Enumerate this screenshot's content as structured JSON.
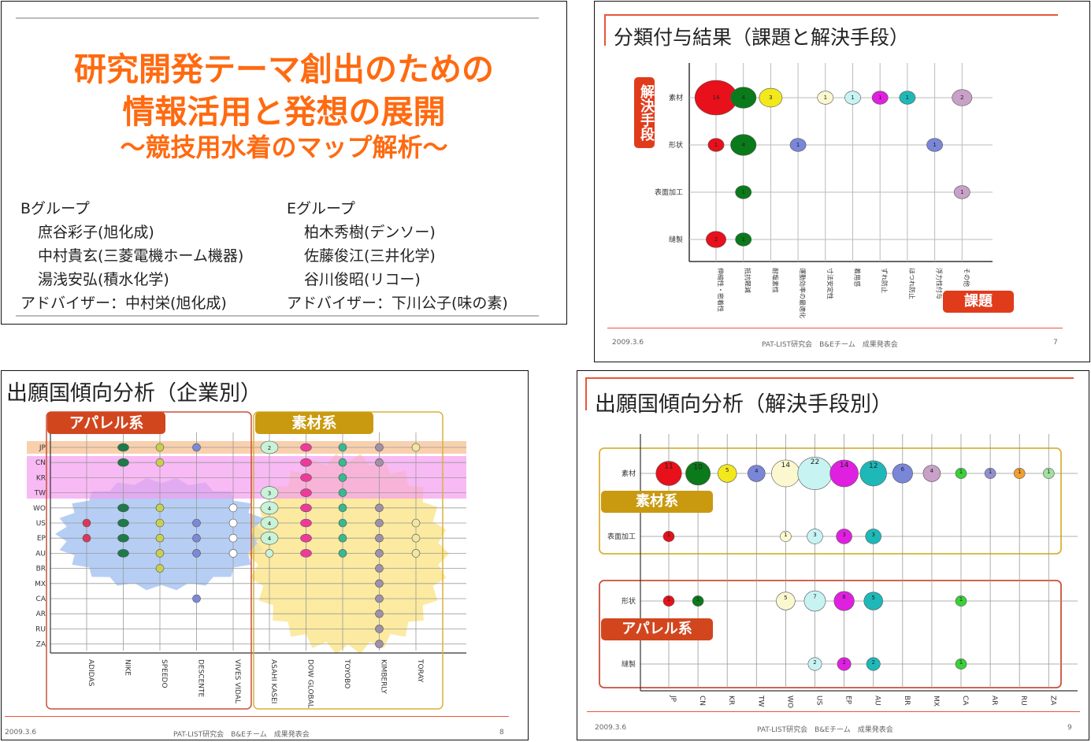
{
  "slide1": {
    "title_line1": "研究開発テーマ創出のための",
    "title_line2": "情報活用と発想の展開",
    "title_line3": "～競技用水着のマップ解析～",
    "group_b": {
      "name": "Bグループ",
      "members": [
        "庶谷彩子(旭化成)",
        "中村貴玄(三菱電機ホーム機器)",
        "湯浅安弘(積水化学)"
      ],
      "advisor": "アドバイザー：中村栄(旭化成)"
    },
    "group_e": {
      "name": "Eグループ",
      "members": [
        "柏木秀樹(デンソー)",
        "佐藤俊江(三井化学)",
        "谷川俊昭(リコー)"
      ],
      "advisor": "アドバイザー：下川公子(味の素)"
    }
  },
  "slide2": {
    "title": "分類付与結果（課題と解決手段）",
    "y_tag": "解決手段",
    "x_tag": "課題",
    "footer_date": "2009.3.6",
    "footer_center": "PAT-LIST研究会　B&Eチーム　成果発表会",
    "page": "7",
    "colors": {
      "accent": "#e8553a",
      "tag": "#e03c1c"
    }
  },
  "slide3": {
    "title": "出願国傾向分析（企業別）",
    "tag_apparel": "アパレル系",
    "tag_material": "素材系",
    "footer_date": "2009.3.6",
    "footer_center": "PAT-LIST研究会　B&Eチーム　成果発表会",
    "page": "8",
    "colors": {
      "apparel_tag": "#d2461e",
      "material_tag": "#c99a10",
      "blob_blue": "#a9c5f2",
      "blob_yellow": "#fae68f",
      "band_pink": "#f59cf0",
      "band_orange": "#f6c49a"
    }
  },
  "slide4": {
    "title": "出願国傾向分析（解決手段別）",
    "tag_material": "素材系",
    "tag_apparel": "アパレル系",
    "footer_date": "2009.3.6",
    "footer_center": "PAT-LIST研究会　B&Eチーム　成果発表会",
    "page": "9"
  },
  "chart_data": [
    {
      "type": "scatter",
      "title": "分類付与結果（課題と解決手段）",
      "xlabel": "課題",
      "ylabel": "解決手段",
      "x_categories": [
        "伸縮性・密着性",
        "抵抗軽減",
        "耐塩素性",
        "運動効率の最適化",
        "寸法安定性",
        "着用感",
        "ずれ防止",
        "ほつれ防止",
        "浮力性付与",
        "その他"
      ],
      "y_categories": [
        "素材",
        "形状",
        "表面加工",
        "縫製"
      ],
      "points": [
        {
          "x": "伸縮性・密着性",
          "y": "素材",
          "value": 14,
          "color": "#e8101a"
        },
        {
          "x": "抵抗軽減",
          "y": "素材",
          "value": 4,
          "color": "#0a7a1a"
        },
        {
          "x": "耐塩素性",
          "y": "素材",
          "value": 3,
          "color": "#f2e81c"
        },
        {
          "x": "寸法安定性",
          "y": "素材",
          "value": 1,
          "color": "#fbf7cf"
        },
        {
          "x": "着用感",
          "y": "素材",
          "value": 1,
          "color": "#c8f3f3"
        },
        {
          "x": "ずれ防止",
          "y": "素材",
          "value": 1,
          "color": "#e020e0"
        },
        {
          "x": "ほつれ防止",
          "y": "素材",
          "value": 1,
          "color": "#1fb8b8"
        },
        {
          "x": "その他",
          "y": "素材",
          "value": 2,
          "color": "#c8a0c8"
        },
        {
          "x": "伸縮性・密着性",
          "y": "形状",
          "value": 1,
          "color": "#e8101a"
        },
        {
          "x": "抵抗軽減",
          "y": "形状",
          "value": 4,
          "color": "#0a7a1a"
        },
        {
          "x": "運動効率の最適化",
          "y": "形状",
          "value": 1,
          "color": "#7a86d8"
        },
        {
          "x": "浮力性付与",
          "y": "形状",
          "value": 1,
          "color": "#7a86d8"
        },
        {
          "x": "抵抗軽減",
          "y": "表面加工",
          "value": 1,
          "color": "#0a7a1a"
        },
        {
          "x": "その他",
          "y": "表面加工",
          "value": 1,
          "color": "#c8a0c8"
        },
        {
          "x": "伸縮性・密着性",
          "y": "縫製",
          "value": 2,
          "color": "#e8101a"
        },
        {
          "x": "抵抗軽減",
          "y": "縫製",
          "value": 1,
          "color": "#0a7a1a"
        }
      ]
    },
    {
      "type": "scatter",
      "title": "出願国傾向分析（企業別）",
      "x_categories": [
        "ADIDAS",
        "NIKE",
        "SPEEDO",
        "DESCENTE",
        "VIVES VIDAL",
        "ASAHI KASEI",
        "DOW GLOBAL",
        "TOYOBO",
        "KIMBERLY",
        "TORAY"
      ],
      "y_categories": [
        "JP",
        "CN",
        "KR",
        "TW",
        "WO",
        "US",
        "EP",
        "AU",
        "BR",
        "MX",
        "CA",
        "AR",
        "RU",
        "ZA"
      ],
      "groups": {
        "アパレル系": [
          "ADIDAS",
          "NIKE",
          "SPEEDO",
          "DESCENTE",
          "VIVES VIDAL"
        ],
        "素材系": [
          "ASAHI KASEI",
          "DOW GLOBAL",
          "TOYOBO",
          "KIMBERLY",
          "TORAY"
        ]
      },
      "series": [
        {
          "company": "ADIDAS",
          "color": "#d83a5a",
          "countries": [
            "US",
            "EP"
          ]
        },
        {
          "company": "NIKE",
          "color": "#1e7a4a",
          "countries": [
            "JP",
            "CN",
            "WO",
            "US",
            "EP",
            "AU"
          ]
        },
        {
          "company": "SPEEDO",
          "color": "#c8d050",
          "countries": [
            "JP",
            "CN",
            "WO",
            "US",
            "EP",
            "AU",
            "BR"
          ]
        },
        {
          "company": "DESCENTE",
          "color": "#7a8ad8",
          "countries": [
            "JP",
            "US",
            "EP",
            "AU",
            "CA"
          ]
        },
        {
          "company": "VIVES VIDAL",
          "color": "#ffffff",
          "countries": [
            "WO",
            "US",
            "EP",
            "AU"
          ]
        },
        {
          "company": "ASAHI KASEI",
          "color": "#c8f3d8",
          "countries": [
            "JP",
            "TW",
            "WO",
            "US",
            "EP",
            "AU"
          ],
          "labels": {
            "JP": "2",
            "TW": "3",
            "WO": "4",
            "US": "4",
            "EP": "4"
          }
        },
        {
          "company": "DOW GLOBAL",
          "color": "#f03a9a",
          "countries": [
            "JP",
            "CN",
            "KR",
            "TW",
            "WO",
            "US",
            "EP",
            "AU"
          ]
        },
        {
          "company": "TOYOBO",
          "color": "#3ab890",
          "countries": [
            "JP",
            "CN",
            "KR",
            "TW",
            "WO",
            "US",
            "EP",
            "AU"
          ]
        },
        {
          "company": "KIMBERLY",
          "color": "#a090a8",
          "countries": [
            "JP",
            "CN",
            "WO",
            "US",
            "EP",
            "AU",
            "BR",
            "MX",
            "CA",
            "AR",
            "RU",
            "ZA"
          ]
        },
        {
          "company": "TORAY",
          "color": "#f0e8a0",
          "countries": [
            "JP",
            "US",
            "EP",
            "AU"
          ]
        }
      ]
    },
    {
      "type": "scatter",
      "title": "出願国傾向分析（解決手段別）",
      "x_categories": [
        "JP",
        "CN",
        "KR",
        "TW",
        "WO",
        "US",
        "EP",
        "AU",
        "BR",
        "MX",
        "CA",
        "AR",
        "RU",
        "ZA"
      ],
      "y_categories": [
        "素材",
        "表面加工",
        "形状",
        "縫製"
      ],
      "points": [
        {
          "x": "JP",
          "y": "素材",
          "value": 11,
          "color": "#e8101a"
        },
        {
          "x": "CN",
          "y": "素材",
          "value": 10,
          "color": "#0a7a1a"
        },
        {
          "x": "KR",
          "y": "素材",
          "value": 5,
          "color": "#f2e81c"
        },
        {
          "x": "TW",
          "y": "素材",
          "value": 4,
          "color": "#7a86d8"
        },
        {
          "x": "WO",
          "y": "素材",
          "value": 14,
          "color": "#fbf7cf"
        },
        {
          "x": "US",
          "y": "素材",
          "value": 22,
          "color": "#c8f3f3"
        },
        {
          "x": "EP",
          "y": "素材",
          "value": 14,
          "color": "#e020e0"
        },
        {
          "x": "AU",
          "y": "素材",
          "value": 12,
          "color": "#1fb8b8"
        },
        {
          "x": "BR",
          "y": "素材",
          "value": 6,
          "color": "#7a86d8"
        },
        {
          "x": "MX",
          "y": "素材",
          "value": 4,
          "color": "#c8a0c8"
        },
        {
          "x": "CA",
          "y": "素材",
          "value": 1,
          "color": "#3ad03a"
        },
        {
          "x": "AR",
          "y": "素材",
          "value": 1,
          "color": "#9090d0"
        },
        {
          "x": "RU",
          "y": "素材",
          "value": 1,
          "color": "#f0a030"
        },
        {
          "x": "ZA",
          "y": "素材",
          "value": 1,
          "color": "#a0e0a0"
        },
        {
          "x": "JP",
          "y": "表面加工",
          "value": 1,
          "color": "#e8101a"
        },
        {
          "x": "WO",
          "y": "表面加工",
          "value": 1,
          "color": "#fbf7cf"
        },
        {
          "x": "US",
          "y": "表面加工",
          "value": 3,
          "color": "#c8f3f3"
        },
        {
          "x": "EP",
          "y": "表面加工",
          "value": 3,
          "color": "#e020e0"
        },
        {
          "x": "AU",
          "y": "表面加工",
          "value": 3,
          "color": "#1fb8b8"
        },
        {
          "x": "JP",
          "y": "形状",
          "value": 1,
          "color": "#e8101a"
        },
        {
          "x": "CN",
          "y": "形状",
          "value": 1,
          "color": "#0a7a1a"
        },
        {
          "x": "WO",
          "y": "形状",
          "value": 5,
          "color": "#fbf7cf"
        },
        {
          "x": "US",
          "y": "形状",
          "value": 7,
          "color": "#c8f3f3"
        },
        {
          "x": "EP",
          "y": "形状",
          "value": 6,
          "color": "#e020e0"
        },
        {
          "x": "AU",
          "y": "形状",
          "value": 5,
          "color": "#1fb8b8"
        },
        {
          "x": "CA",
          "y": "形状",
          "value": 1,
          "color": "#3ad03a"
        },
        {
          "x": "US",
          "y": "縫製",
          "value": 2,
          "color": "#c8f3f3"
        },
        {
          "x": "EP",
          "y": "縫製",
          "value": 2,
          "color": "#e020e0"
        },
        {
          "x": "AU",
          "y": "縫製",
          "value": 2,
          "color": "#1fb8b8"
        },
        {
          "x": "CA",
          "y": "縫製",
          "value": 1,
          "color": "#3ad03a"
        }
      ]
    }
  ]
}
